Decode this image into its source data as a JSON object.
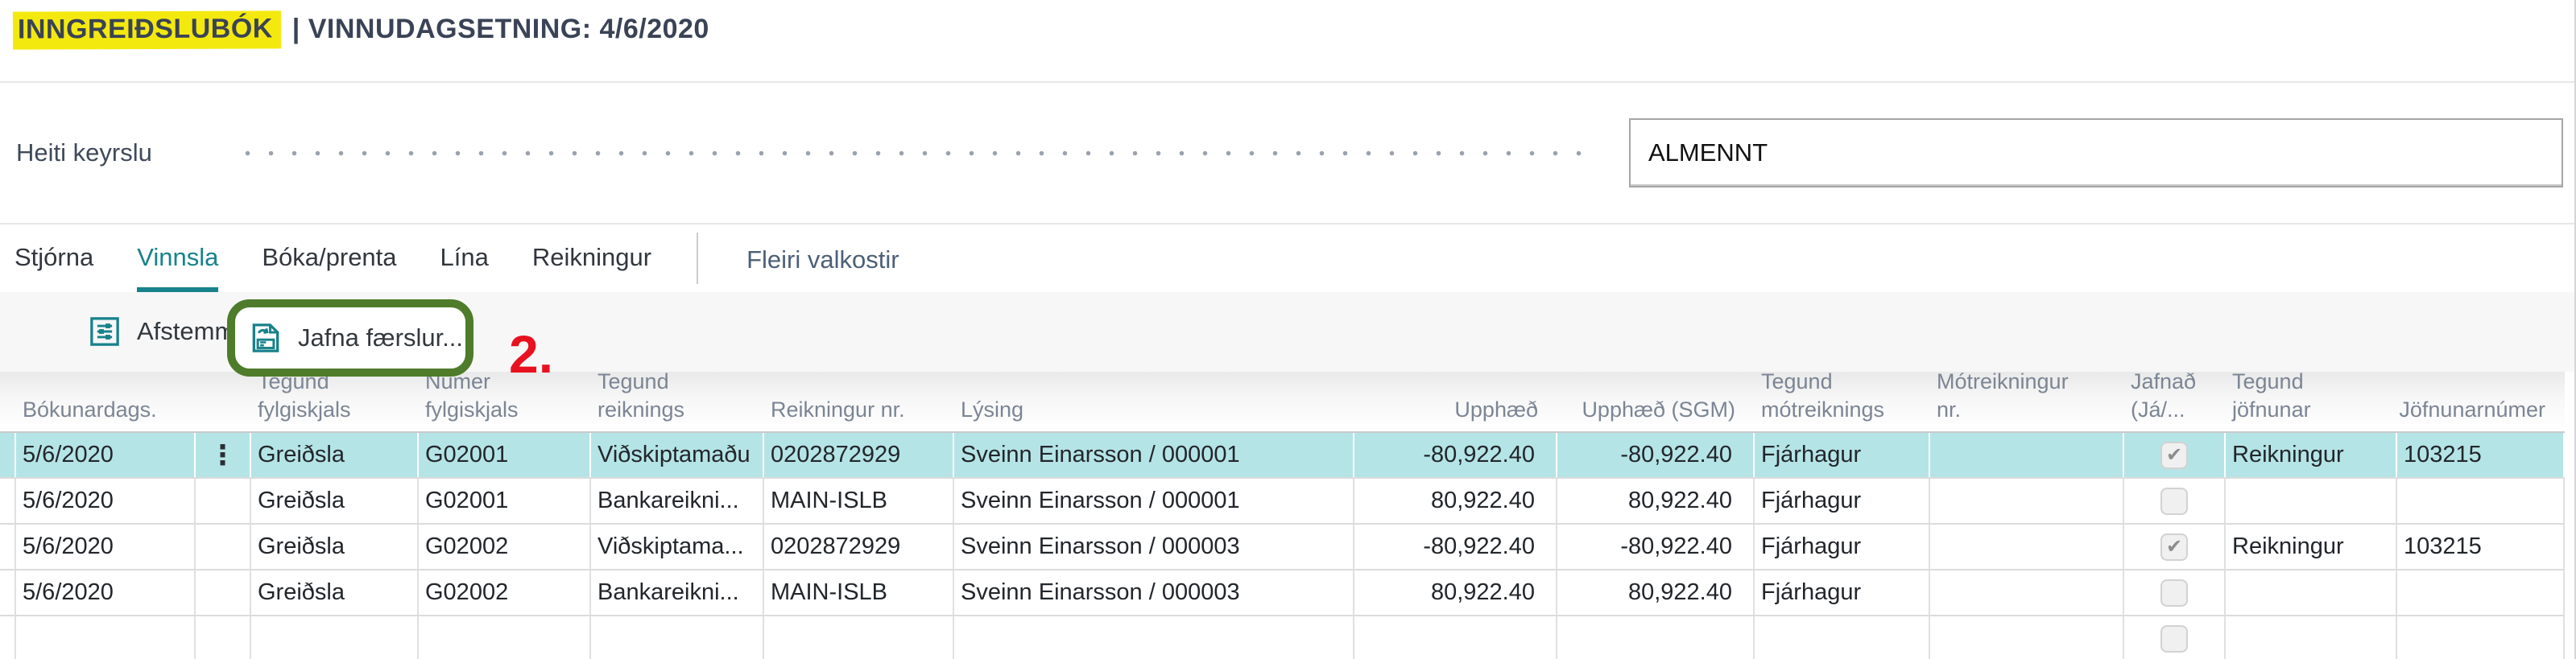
{
  "title": {
    "highlighted": "INNGREIÐSLUBÓK",
    "rest": "| VINNUDAGSETNING: 4/6/2020"
  },
  "field": {
    "label": "Heiti keyrslu",
    "value": "ALMENNT"
  },
  "tabs": {
    "items": [
      {
        "label": "Stjórna",
        "active": false
      },
      {
        "label": "Vinnsla",
        "active": true
      },
      {
        "label": "Bóka/prenta",
        "active": false
      },
      {
        "label": "Lína",
        "active": false
      },
      {
        "label": "Reikningur",
        "active": false
      }
    ],
    "more": "Fleiri valkostir"
  },
  "toolbar": {
    "buttons": [
      {
        "label": "Afstemma",
        "icon": "reconcile-icon"
      },
      {
        "label": "Jafna færslur...",
        "icon": "apply-entries-icon",
        "annotated": true
      }
    ],
    "annotation_step": "2."
  },
  "table": {
    "headers": {
      "posting_date": "Bókunardags.",
      "doc_type": "Tegund\nfylgiskjals",
      "doc_no": "Númer\nfylgiskjals",
      "account_type": "Tegund\nreiknings",
      "account_no": "Reikningur nr.",
      "description": "Lýsing",
      "amount": "Upphæð",
      "amount_lcy": "Upphæð (SGM)",
      "bal_account_type": "Tegund\nmótreiknings",
      "bal_account_no": "Mótreikningur\nnr.",
      "applied": "Jafnað\n(Já/...",
      "applies_to_doc_type": "Tegund\njöfnunar",
      "applies_to_doc_no": "Jöfnunarnúmer"
    },
    "rows": [
      {
        "posting_date": "5/6/2020",
        "doc_type": "Greiðsla",
        "doc_no": "G02001",
        "account_type": "Viðskiptamaðu",
        "account_no": "0202872929",
        "description": "Sveinn Einarsson / 000001",
        "amount": "-80,922.40",
        "amount_lcy": "-80,922.40",
        "bal_account_type": "Fjárhagur",
        "bal_account_no": "",
        "applied": true,
        "applies_to_doc_type": "Reikningur",
        "applies_to_doc_no": "103215",
        "selected": true
      },
      {
        "posting_date": "5/6/2020",
        "doc_type": "Greiðsla",
        "doc_no": "G02001",
        "account_type": "Bankareikni...",
        "account_no": "MAIN-ISLB",
        "description": "Sveinn Einarsson / 000001",
        "amount": "80,922.40",
        "amount_lcy": "80,922.40",
        "bal_account_type": "Fjárhagur",
        "bal_account_no": "",
        "applied": false,
        "applies_to_doc_type": "",
        "applies_to_doc_no": "",
        "selected": false
      },
      {
        "posting_date": "5/6/2020",
        "doc_type": "Greiðsla",
        "doc_no": "G02002",
        "account_type": "Viðskiptama...",
        "account_no": "0202872929",
        "description": "Sveinn Einarsson / 000003",
        "amount": "-80,922.40",
        "amount_lcy": "-80,922.40",
        "bal_account_type": "Fjárhagur",
        "bal_account_no": "",
        "applied": true,
        "applies_to_doc_type": "Reikningur",
        "applies_to_doc_no": "103215",
        "selected": false
      },
      {
        "posting_date": "5/6/2020",
        "doc_type": "Greiðsla",
        "doc_no": "G02002",
        "account_type": "Bankareikni...",
        "account_no": "MAIN-ISLB",
        "description": "Sveinn Einarsson / 000003",
        "amount": "80,922.40",
        "amount_lcy": "80,922.40",
        "bal_account_type": "Fjárhagur",
        "bal_account_no": "",
        "applied": false,
        "applies_to_doc_type": "",
        "applies_to_doc_no": "",
        "selected": false
      },
      {
        "posting_date": "",
        "doc_type": "",
        "doc_no": "",
        "account_type": "",
        "account_no": "",
        "description": "",
        "amount": "",
        "amount_lcy": "",
        "bal_account_type": "",
        "bal_account_no": "",
        "applied": false,
        "applies_to_doc_type": "",
        "applies_to_doc_no": "",
        "selected": false,
        "partial": true
      }
    ]
  },
  "colors": {
    "accent": "#17828b",
    "selected_row": "#b5e4e6",
    "highlight": "#f4e90e",
    "annotation_green": "#4e7c2a",
    "annotation_red": "#e8111f"
  }
}
